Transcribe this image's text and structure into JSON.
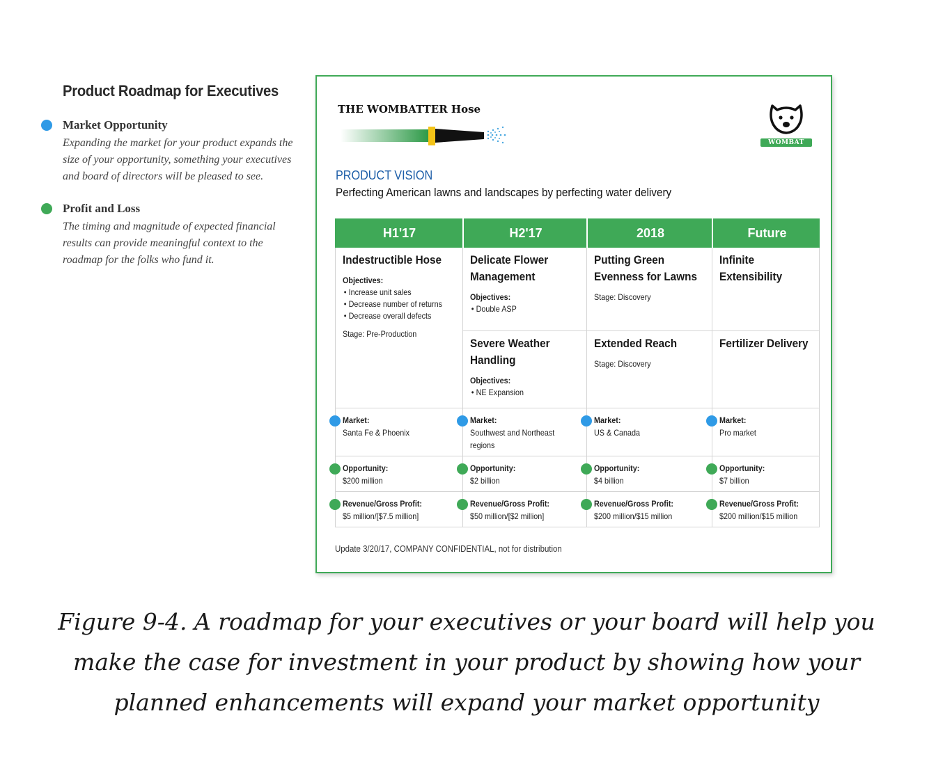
{
  "legend": {
    "title": "Product Roadmap for Executives",
    "items": [
      {
        "heading": "Market Opportunity",
        "description": "Expanding the market for your product expands the size of your opportunity, something your executives and board of directors will be pleased to see.",
        "color": "#2f9ae6"
      },
      {
        "heading": "Profit and Loss",
        "description": "The timing and magnitude of expected financial results can provide meaningful context to the roadmap for the folks who fund it.",
        "color": "#3fa957"
      }
    ]
  },
  "card": {
    "brand": "THE WOMBATTER Hose",
    "logo_text": "WOMBAT",
    "vision_label": "PRODUCT VISION",
    "vision_text": "Perfecting American lawns and landscapes by perfecting water delivery",
    "columns": [
      "H1'17",
      "H2'17",
      "2018",
      "Future"
    ],
    "row1": [
      {
        "title": "Indestructible Hose",
        "objectives_label": "Objectives:",
        "objectives": [
          "Increase unit sales",
          "Decrease number of returns",
          "Decrease overall defects"
        ],
        "stage": "Stage: Pre-Production"
      },
      {
        "title": "Delicate Flower Management",
        "objectives_label": "Objectives:",
        "objectives": [
          "Double ASP"
        ]
      },
      {
        "title": "Putting Green Evenness for Lawns",
        "stage": "Stage: Discovery"
      },
      {
        "title": "Infinite Extensibility"
      }
    ],
    "row2": [
      {
        "title": "Severe Weather Handling",
        "objectives_label": "Objectives:",
        "objectives": [
          "NE Expansion"
        ]
      },
      {
        "title": "Extended Reach",
        "stage": "Stage: Discovery"
      },
      {
        "title": "Fertilizer Delivery"
      }
    ],
    "market_label": "Market:",
    "markets": [
      "Santa Fe & Phoenix",
      "Southwest and Northeast regions",
      "US & Canada",
      "Pro market"
    ],
    "opportunity_label": "Opportunity:",
    "opportunities": [
      "$200 million",
      "$2 billion",
      "$4 billion",
      "$7 billion"
    ],
    "revenue_label": "Revenue/Gross Profit:",
    "revenues": [
      "$5 million/[$7.5 million]",
      "$50 million/[$2 million]",
      "$200 million/$15 million",
      "$200 million/$15 million"
    ],
    "footer": "Update 3/20/17, COMPANY CONFIDENTIAL, not for distribution"
  },
  "caption": "Figure 9-4. A roadmap for your executives or your board will help you make the case for investment in your product by showing how your planned enhancements will expand your market opportunity",
  "colors": {
    "green": "#3fa957",
    "blue": "#2f9ae6",
    "vision_blue": "#1d5ea8"
  }
}
